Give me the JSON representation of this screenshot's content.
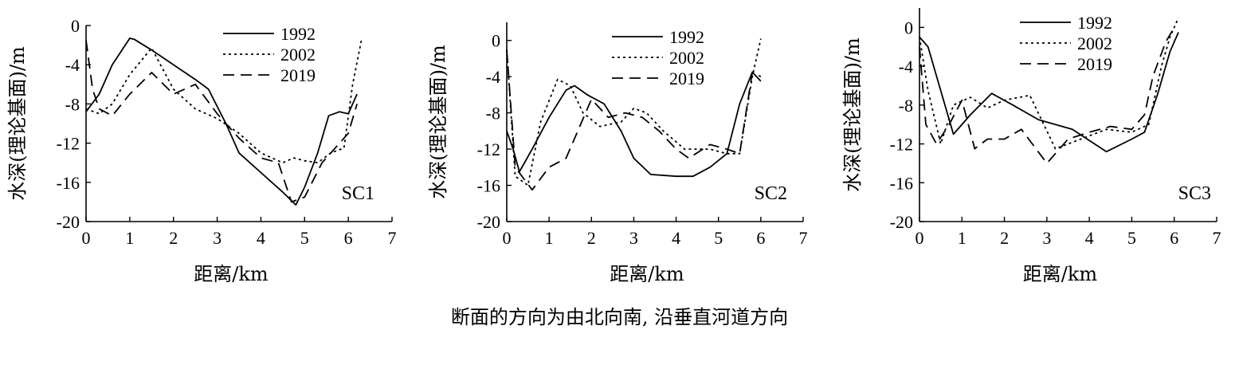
{
  "caption": "断面的方向为由北向南, 沿垂直河道方向",
  "chart_data": [
    {
      "type": "line",
      "panel_label": "SC1",
      "xlabel": "距离/km",
      "ylabel": "水深(理论基面)/m",
      "xlim": [
        0,
        7
      ],
      "ylim": [
        -20,
        0
      ],
      "xticks": [
        0,
        1,
        2,
        3,
        4,
        5,
        6,
        7
      ],
      "yticks": [
        0,
        -4,
        -8,
        -12,
        -16,
        -20
      ],
      "legend": [
        "1992",
        "2002",
        "2019"
      ],
      "legend_position": "top-center",
      "grid": false,
      "series": [
        {
          "name": "1992",
          "style": "solid",
          "x": [
            0,
            0.3,
            0.6,
            1.0,
            1.1,
            1.5,
            2.0,
            2.5,
            2.8,
            3.2,
            3.5,
            4.0,
            4.5,
            4.8,
            5.0,
            5.3,
            5.55,
            5.8,
            6.0,
            6.2
          ],
          "y": [
            -8.8,
            -7.0,
            -4.0,
            -1.3,
            -1.4,
            -2.5,
            -4.0,
            -5.5,
            -6.5,
            -10.0,
            -13.0,
            -15.0,
            -17.0,
            -18.3,
            -16.5,
            -13.0,
            -9.2,
            -8.8,
            -9.0,
            -7.0
          ]
        },
        {
          "name": "2002",
          "style": "dotted",
          "x": [
            0,
            0.3,
            0.6,
            1.0,
            1.5,
            2.0,
            2.5,
            3.0,
            3.5,
            4.0,
            4.5,
            4.75,
            5.0,
            5.3,
            5.6,
            5.9,
            6.1,
            6.3
          ],
          "y": [
            -8.5,
            -9.0,
            -8.0,
            -5.0,
            -2.3,
            -6.5,
            -8.5,
            -9.5,
            -11.0,
            -13.0,
            -14.0,
            -13.5,
            -13.8,
            -14.0,
            -13.0,
            -12.5,
            -6.0,
            -1.5
          ]
        },
        {
          "name": "2019",
          "style": "dashed",
          "x": [
            0,
            0.15,
            0.3,
            0.6,
            1.0,
            1.5,
            2.0,
            2.5,
            3.0,
            3.5,
            4.0,
            4.4,
            4.7,
            5.0,
            5.4,
            5.8,
            6.0,
            6.2
          ],
          "y": [
            -1.5,
            -6.5,
            -8.5,
            -9.2,
            -7.0,
            -4.8,
            -7.0,
            -6.0,
            -9.0,
            -11.5,
            -13.5,
            -14.0,
            -18.0,
            -17.5,
            -14.0,
            -12.0,
            -11.0,
            -8.0
          ]
        }
      ]
    },
    {
      "type": "line",
      "panel_label": "SC2",
      "xlabel": "距离/km",
      "ylabel": "水深(理论基面)/m",
      "xlim": [
        0,
        7
      ],
      "ylim": [
        -20,
        2
      ],
      "xticks": [
        0,
        1,
        2,
        3,
        4,
        5,
        6,
        7
      ],
      "yticks": [
        0,
        -4,
        -8,
        -12,
        -16,
        -20
      ],
      "legend": [
        "1992",
        "2002",
        "2019"
      ],
      "legend_position": "top-right",
      "grid": false,
      "series": [
        {
          "name": "1992",
          "style": "solid",
          "x": [
            0,
            0.15,
            0.3,
            0.6,
            1.0,
            1.4,
            1.6,
            1.9,
            2.3,
            2.7,
            3.0,
            3.4,
            4.0,
            4.4,
            4.8,
            5.2,
            5.5,
            5.8,
            6.0
          ],
          "y": [
            -10.0,
            -12.0,
            -14.5,
            -12.0,
            -8.5,
            -5.5,
            -5.0,
            -6.0,
            -7.0,
            -10.0,
            -13.0,
            -14.8,
            -15.0,
            -15.0,
            -14.0,
            -12.5,
            -7.0,
            -3.5,
            -4.5
          ]
        },
        {
          "name": "2002",
          "style": "dotted",
          "x": [
            0,
            0.2,
            0.5,
            0.8,
            1.2,
            1.5,
            1.8,
            2.2,
            2.7,
            3.0,
            3.3,
            3.7,
            4.2,
            4.8,
            5.2,
            5.5,
            5.8,
            6.0
          ],
          "y": [
            -1.0,
            -15.0,
            -16.0,
            -9.0,
            -4.3,
            -5.0,
            -8.0,
            -9.5,
            -9.0,
            -7.5,
            -8.0,
            -10.0,
            -12.0,
            -12.0,
            -12.5,
            -12.5,
            -4.0,
            0.2
          ]
        },
        {
          "name": "2019",
          "style": "dashed",
          "x": [
            0,
            0.2,
            0.6,
            1.0,
            1.4,
            2.0,
            2.4,
            2.8,
            3.2,
            3.6,
            4.0,
            4.3,
            4.8,
            5.2,
            5.5,
            5.8,
            6.0
          ],
          "y": [
            -1.0,
            -14.0,
            -16.5,
            -14.0,
            -13.0,
            -6.5,
            -8.5,
            -8.0,
            -8.5,
            -10.0,
            -12.0,
            -13.0,
            -11.5,
            -12.0,
            -12.5,
            -3.5,
            -4.0
          ]
        }
      ]
    },
    {
      "type": "line",
      "panel_label": "SC3",
      "xlabel": "距离/km",
      "ylabel": "水深(理论基面)/m",
      "xlim": [
        0,
        7
      ],
      "ylim": [
        -20,
        2
      ],
      "xticks": [
        0,
        1,
        2,
        3,
        4,
        5,
        6,
        7
      ],
      "yticks": [
        0,
        -4,
        -8,
        -12,
        -16,
        -20
      ],
      "legend": [
        "1992",
        "2002",
        "2019"
      ],
      "legend_position": "top-center",
      "grid": false,
      "series": [
        {
          "name": "1992",
          "style": "solid",
          "x": [
            0,
            0.2,
            0.5,
            0.8,
            1.2,
            1.7,
            2.2,
            2.8,
            3.6,
            4.4,
            5.0,
            5.3,
            5.6,
            5.9,
            6.1
          ],
          "y": [
            -1.0,
            -2.0,
            -6.5,
            -11.0,
            -9.0,
            -6.8,
            -8.0,
            -9.5,
            -10.5,
            -12.8,
            -11.5,
            -10.8,
            -7.0,
            -2.5,
            -0.5
          ]
        },
        {
          "name": "2002",
          "style": "dotted",
          "x": [
            0,
            0.2,
            0.5,
            0.8,
            1.2,
            1.6,
            2.0,
            2.6,
            3.2,
            3.8,
            4.4,
            5.0,
            5.4,
            5.7,
            5.9,
            6.1
          ],
          "y": [
            -1.0,
            -6.5,
            -12.0,
            -8.0,
            -7.2,
            -8.3,
            -7.5,
            -7.0,
            -12.5,
            -11.5,
            -10.5,
            -10.8,
            -10.0,
            -4.0,
            -1.0,
            1.0
          ]
        },
        {
          "name": "2019",
          "style": "dashed",
          "x": [
            0,
            0.15,
            0.4,
            0.7,
            1.0,
            1.3,
            1.6,
            2.0,
            2.4,
            3.0,
            3.5,
            4.0,
            4.5,
            5.0,
            5.3,
            5.5,
            5.8,
            6.0
          ],
          "y": [
            -2.0,
            -10.0,
            -12.0,
            -10.0,
            -7.5,
            -12.5,
            -11.5,
            -11.5,
            -10.5,
            -14.0,
            -11.5,
            -10.8,
            -10.2,
            -10.5,
            -9.0,
            -5.0,
            -1.5,
            0.0
          ]
        }
      ]
    }
  ]
}
